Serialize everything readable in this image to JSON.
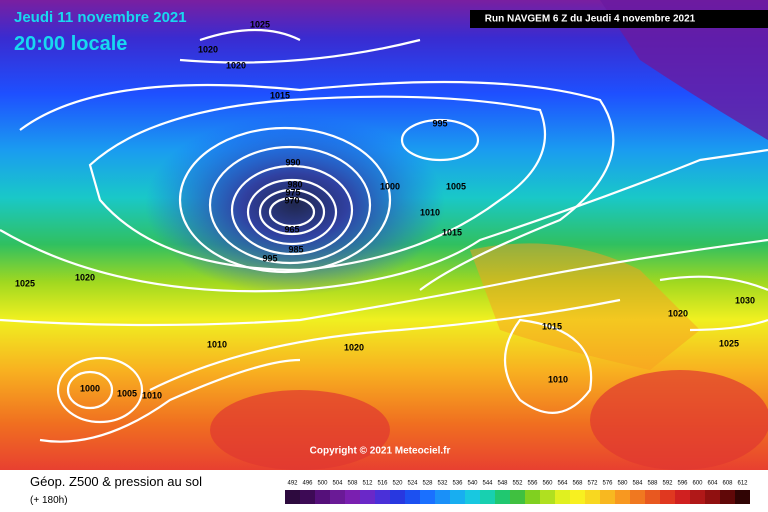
{
  "header": {
    "date": "Jeudi 11 novembre 2021",
    "time": "20:00 locale",
    "run": "Run NAVGEM 6 Z du Jeudi 4 novembre 2021"
  },
  "isobar_labels": [
    "1025",
    "1020",
    "1020",
    "1015",
    "995",
    "990",
    "980",
    "975",
    "970",
    "965",
    "985",
    "995",
    "1000",
    "1005",
    "1010",
    "1015",
    "1020",
    "1025",
    "1010",
    "1020",
    "1000",
    "1005",
    "1010",
    "1015",
    "1010",
    "1020",
    "1030",
    "1025"
  ],
  "copyright": "Copyright © 2021 Meteociel.fr",
  "legend": {
    "title": "Géop. Z500 & pression au sol",
    "subtitle": "(+ 180h)",
    "scale": [
      "492",
      "496",
      "500",
      "504",
      "508",
      "512",
      "516",
      "520",
      "524",
      "528",
      "532",
      "536",
      "540",
      "544",
      "548",
      "552",
      "556",
      "560",
      "564",
      "568",
      "572",
      "576",
      "580",
      "584",
      "588",
      "592",
      "596",
      "600",
      "604",
      "608",
      "612"
    ],
    "colors": [
      "#2d0a3e",
      "#3d0a55",
      "#55107a",
      "#6a1a96",
      "#7a1fb0",
      "#6a28c8",
      "#4a30d8",
      "#2838e0",
      "#1c50f0",
      "#1a70ff",
      "#1a90f8",
      "#18aef0",
      "#18c8e0",
      "#18d0b0",
      "#20c870",
      "#40c040",
      "#80d020",
      "#b0e020",
      "#e0f020",
      "#f8f020",
      "#f8d820",
      "#f8b820",
      "#f89820",
      "#f07820",
      "#e85820",
      "#e03820",
      "#d02020",
      "#b01818",
      "#901010",
      "#600808",
      "#300404"
    ]
  }
}
